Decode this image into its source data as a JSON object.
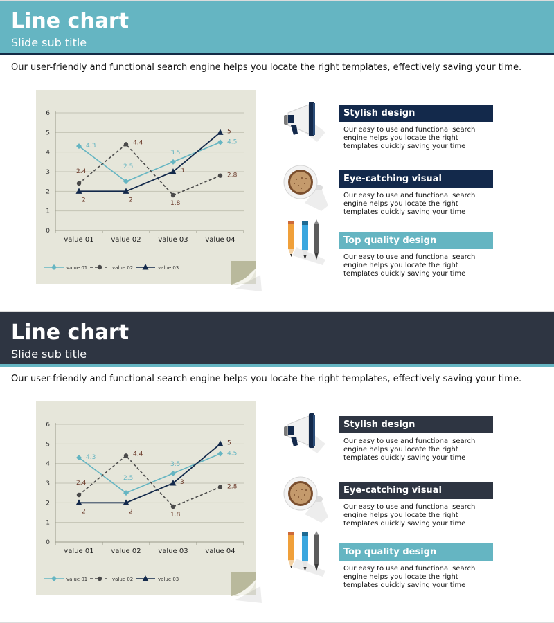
{
  "slides": [
    {
      "title": "Line chart",
      "subtitle": "Slide sub title",
      "description": "Our user-friendly and functional search engine helps you locate the right templates, effectively saving your time.",
      "header_color": "#65b5c2",
      "bar_color": "#142a45",
      "heading_color": "#13294b",
      "features": [
        {
          "icon": "megaphone-icon",
          "heading": "Stylish design",
          "text": "Our easy to use and functional search engine helps you locate the right templates quickly saving your time"
        },
        {
          "icon": "coffee-cup-icon",
          "heading": "Eye-catching visual",
          "text": "Our easy to use and functional search engine helps you locate the right templates quickly saving your time"
        },
        {
          "icon": "pencils-icon",
          "heading": "Top quality design",
          "text": "Our easy to use and functional search engine helps you locate the right templates quickly saving your time"
        }
      ]
    },
    {
      "title": "Line chart",
      "subtitle": "Slide sub title",
      "description": "Our user-friendly and functional search engine helps you locate the right templates, effectively saving your time.",
      "header_color": "#2e3542",
      "bar_color": "#65b5c2",
      "heading_color": "#2e3542",
      "features": [
        {
          "icon": "megaphone-icon",
          "heading": "Stylish design",
          "text": "Our easy to use and functional search engine helps you locate the right templates quickly saving your time"
        },
        {
          "icon": "coffee-cup-icon",
          "heading": "Eye-catching visual",
          "text": "Our easy to use and functional search engine helps you locate the right templates quickly saving your time"
        },
        {
          "icon": "pencils-icon",
          "heading": "Top quality design",
          "text": "Our easy to use and functional search engine helps you locate the right templates quickly saving your time"
        }
      ]
    }
  ],
  "accent_color": "#65b5c2",
  "chart_data": [
    {
      "type": "line",
      "categories": [
        "value 01",
        "value 02",
        "value 03",
        "value 04"
      ],
      "ylim": [
        0,
        6
      ],
      "yticks": [
        0,
        1,
        2,
        3,
        4,
        5,
        6
      ],
      "grid": true,
      "legend": "bottom-left",
      "series": [
        {
          "name": "value 01",
          "values": [
            4.3,
            2.5,
            3.5,
            4.5
          ],
          "labels": [
            "4.3",
            "2.5",
            "3.5",
            "4.5"
          ],
          "color": "#65b5c2",
          "marker": "diamond",
          "dash": "solid"
        },
        {
          "name": "value 02",
          "values": [
            2.4,
            4.4,
            1.8,
            2.8
          ],
          "labels": [
            "2.4",
            "4.4",
            "1.8",
            "2.8"
          ],
          "color": "#4a4a4a",
          "label_color": "#6b3a2a",
          "marker": "circle",
          "dash": "dashed"
        },
        {
          "name": "value 03",
          "values": [
            2,
            2,
            3,
            5
          ],
          "labels": [
            "2",
            "2",
            "3",
            "5"
          ],
          "color": "#13294b",
          "label_color": "#6b3a2a",
          "marker": "triangle",
          "dash": "solid"
        }
      ]
    },
    {
      "type": "line",
      "categories": [
        "value 01",
        "value 02",
        "value 03",
        "value 04"
      ],
      "ylim": [
        0,
        6
      ],
      "yticks": [
        0,
        1,
        2,
        3,
        4,
        5,
        6
      ],
      "grid": true,
      "legend": "bottom-left",
      "series": [
        {
          "name": "value 01",
          "values": [
            4.3,
            2.5,
            3.5,
            4.5
          ],
          "labels": [
            "4.3",
            "2.5",
            "3.5",
            "4.5"
          ],
          "color": "#65b5c2",
          "marker": "diamond",
          "dash": "solid"
        },
        {
          "name": "value 02",
          "values": [
            2.4,
            4.4,
            1.8,
            2.8
          ],
          "labels": [
            "2.4",
            "4.4",
            "1.8",
            "2.8"
          ],
          "color": "#4a4a4a",
          "label_color": "#6b3a2a",
          "marker": "circle",
          "dash": "dashed"
        },
        {
          "name": "value 03",
          "values": [
            2,
            2,
            3,
            5
          ],
          "labels": [
            "2",
            "2",
            "3",
            "5"
          ],
          "color": "#13294b",
          "label_color": "#6b3a2a",
          "marker": "triangle",
          "dash": "solid"
        }
      ]
    }
  ]
}
